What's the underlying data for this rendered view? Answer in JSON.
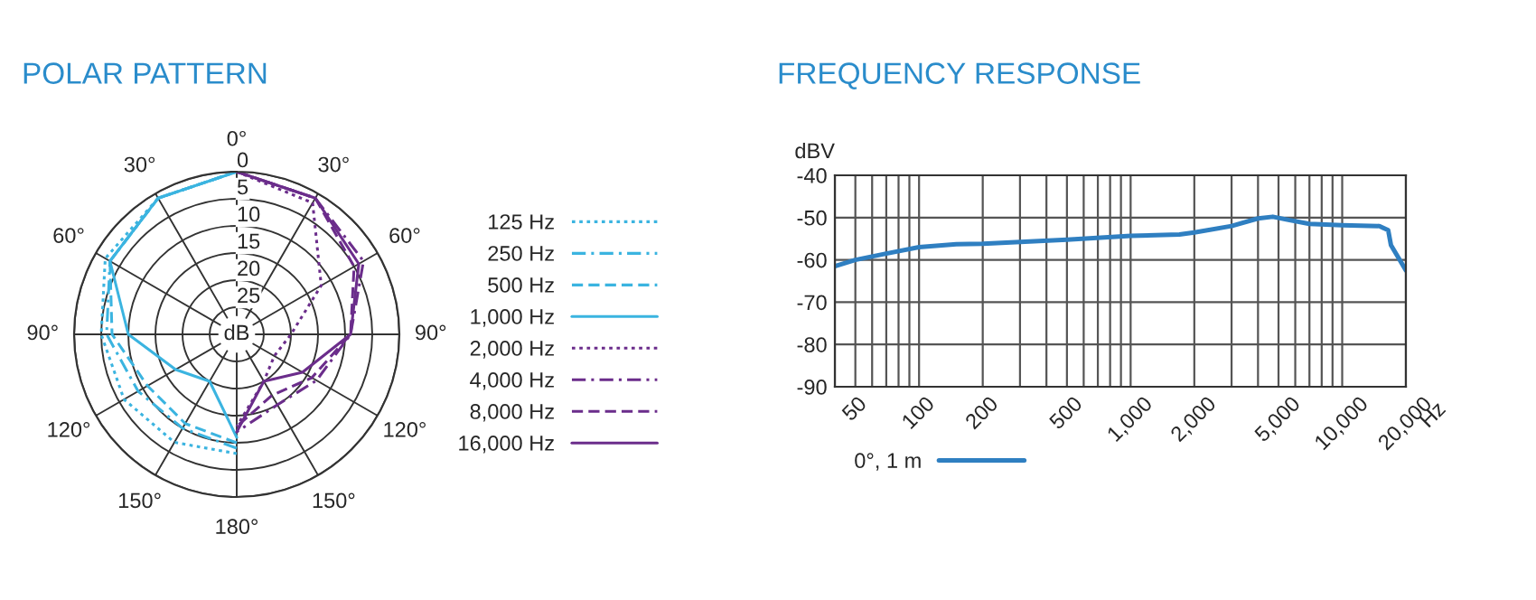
{
  "chart_data": [
    {
      "type": "radar",
      "title": "POLAR PATTERN",
      "ylabel": "dB",
      "categories": [
        "0°",
        "30°",
        "60°",
        "90°",
        "120°",
        "150°",
        "180°",
        "150°",
        "120°",
        "90°",
        "60°",
        "30°"
      ],
      "ylim": [
        30,
        0
      ],
      "yticks": [
        0,
        5,
        10,
        15,
        20,
        25
      ],
      "grid": true,
      "legend": "right",
      "series": [
        {
          "name": "125 Hz",
          "color": "#3bb4e0",
          "line_style": "dotted",
          "values": [
            0,
            null,
            null,
            null,
            null,
            null,
            8,
            7,
            6,
            5,
            2,
            1
          ]
        },
        {
          "name": "250 Hz",
          "color": "#3bb4e0",
          "line_style": "dashdot",
          "values": [
            0,
            null,
            null,
            null,
            null,
            null,
            9,
            10,
            9,
            6,
            3,
            1
          ]
        },
        {
          "name": "500 Hz",
          "color": "#3bb4e0",
          "line_style": "dashed",
          "values": [
            0,
            null,
            null,
            null,
            null,
            null,
            10,
            11,
            11,
            7,
            3,
            1
          ]
        },
        {
          "name": "1,000 Hz",
          "color": "#3bb4e0",
          "line_style": "solid",
          "values": [
            0,
            null,
            null,
            null,
            null,
            null,
            11,
            20,
            17,
            10,
            3,
            1
          ]
        },
        {
          "name": "2,000 Hz",
          "color": "#6b2d8b",
          "line_style": "dotted",
          "values": [
            0,
            2,
            12,
            20,
            22,
            20,
            13,
            null,
            null,
            null,
            null,
            null
          ]
        },
        {
          "name": "4,000 Hz",
          "color": "#6b2d8b",
          "line_style": "dashdot",
          "values": [
            0,
            1,
            3,
            9,
            13,
            15,
            12,
            null,
            null,
            null,
            null,
            null
          ]
        },
        {
          "name": "8,000 Hz",
          "color": "#6b2d8b",
          "line_style": "dashed",
          "values": [
            0,
            1,
            5,
            9,
            14,
            17,
            13,
            null,
            null,
            null,
            null,
            null
          ]
        },
        {
          "name": "16,000 Hz",
          "color": "#6b2d8b",
          "line_style": "solid",
          "values": [
            0,
            1,
            4,
            9,
            16,
            20,
            12,
            null,
            null,
            null,
            null,
            null
          ]
        }
      ]
    },
    {
      "type": "line",
      "title": "FREQUENCY RESPONSE",
      "xlabel": "Hz",
      "ylabel": "dBV",
      "log": "x",
      "grid": true,
      "legend": "bottom",
      "xlim": [
        40,
        20000
      ],
      "ylim": [
        -90,
        -40
      ],
      "yticks": [
        -90,
        -80,
        -70,
        -60,
        -50,
        -40
      ],
      "xticks": [
        {
          "value": 40,
          "label": null
        },
        50,
        {
          "value": 60,
          "label": null
        },
        {
          "value": 70,
          "label": null
        },
        {
          "value": 80,
          "label": null
        },
        {
          "value": 90,
          "label": null
        },
        100,
        200,
        {
          "value": 300,
          "label": null
        },
        {
          "value": 400,
          "label": null
        },
        500,
        {
          "value": 600,
          "label": null
        },
        {
          "value": 700,
          "label": null
        },
        {
          "value": 800,
          "label": null
        },
        {
          "value": 900,
          "label": null
        },
        {
          "value": 1000,
          "label": "1,000"
        },
        {
          "value": 2000,
          "label": "2,000"
        },
        {
          "value": 3000,
          "label": null
        },
        {
          "value": 4000,
          "label": null
        },
        {
          "value": 5000,
          "label": "5,000"
        },
        {
          "value": 6000,
          "label": null
        },
        {
          "value": 7000,
          "label": null
        },
        {
          "value": 8000,
          "label": null
        },
        {
          "value": 9000,
          "label": null
        },
        {
          "value": 10000,
          "label": "10,000"
        },
        {
          "value": 20000,
          "label": "20,000"
        }
      ],
      "series": [
        {
          "name": "0°, 1 m",
          "color": "#2f7fc1",
          "x": [
            40,
            50,
            70,
            100,
            150,
            200,
            500,
            1000,
            1700,
            2000,
            3000,
            4000,
            4700,
            5500,
            7000,
            10000,
            15000,
            16500,
            17000,
            20000
          ],
          "values": [
            -61.5,
            -60,
            -58.5,
            -57,
            -56.3,
            -56.2,
            -55.2,
            -54.3,
            -54,
            -53.5,
            -52,
            -50.2,
            -49.8,
            -50.5,
            -51.5,
            -51.8,
            -52,
            -53,
            -56.5,
            -62.5
          ]
        }
      ]
    }
  ]
}
